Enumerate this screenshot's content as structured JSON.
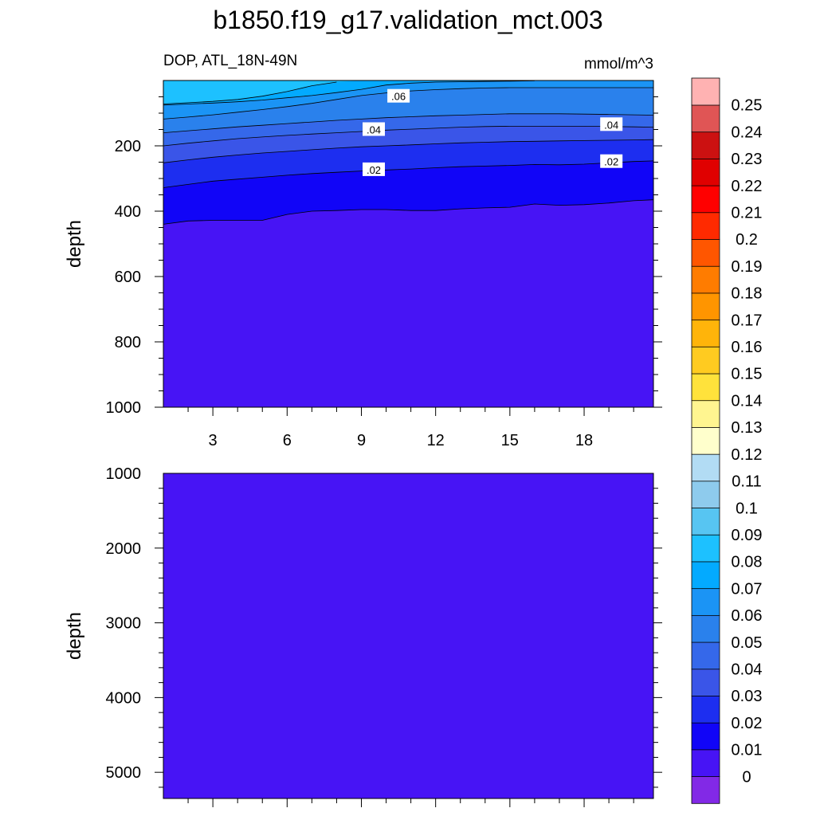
{
  "chart_data": {
    "type": "contour",
    "title": "b1850.f19_g17.validation_mct.003",
    "colorbar": {
      "tick_labels": [
        "0",
        "0.01",
        "0.02",
        "0.03",
        "0.04",
        "0.05",
        "0.06",
        "0.07",
        "0.08",
        "0.09",
        "0.1",
        "0.11",
        "0.12",
        "0.13",
        "0.14",
        "0.15",
        "0.16",
        "0.17",
        "0.18",
        "0.19",
        "0.2",
        "0.21",
        "0.22",
        "0.23",
        "0.24",
        "0.25"
      ],
      "colors": [
        "#8229e6",
        "#4714f5",
        "#1105f7",
        "#1d2ef0",
        "#3a55e8",
        "#3568ea",
        "#2a81ec",
        "#1b94f5",
        "#03aaff",
        "#1dc1ff",
        "#57c5f2",
        "#8ecbed",
        "#b2dcf4",
        "#ffffcc",
        "#fff590",
        "#ffe23b",
        "#ffcb20",
        "#ffb40a",
        "#ff9500",
        "#ff7c00",
        "#ff5600",
        "#ff2a00",
        "#ff0000",
        "#e00000",
        "#cc1111",
        "#e05555",
        "#ffb2b2"
      ]
    },
    "panels": [
      {
        "name": "upper",
        "subtitle_left": "DOP, ATL_18N-49N",
        "subtitle_right": "mmol/m^3",
        "ylabel": "depth",
        "ylim": [
          0,
          1000
        ],
        "y_ticks": [
          "200",
          "400",
          "600",
          "800",
          "1000"
        ],
        "xlim": [
          1,
          20.8
        ],
        "x_ticks": [
          "3",
          "6",
          "9",
          "12",
          "15",
          "18"
        ],
        "x": [
          1,
          2,
          3,
          4,
          5,
          6,
          7,
          8,
          9,
          10,
          11,
          12,
          13,
          14,
          15,
          16,
          17,
          18,
          19,
          20,
          20.8
        ],
        "fill_background": "#4714f5",
        "bands": [
          {
            "level": "0.01-0.02",
            "color": "#1105f7",
            "bottom": [
              440,
              430,
              428,
              428,
              428,
              410,
              400,
              398,
              395,
              395,
              398,
              398,
              393,
              390,
              388,
              378,
              382,
              380,
              375,
              368,
              365
            ]
          },
          {
            "level": "0.02-0.03",
            "color": "#1d2ef0",
            "bottom": [
              328,
              318,
              308,
              302,
              296,
              290,
              285,
              281,
              277,
              274,
              271,
              267,
              264,
              262,
              260,
              257,
              258,
              256,
              252,
              248,
              246
            ]
          },
          {
            "level": "0.03-0.04",
            "color": "#3a55e8",
            "bottom": [
              252,
              243,
              235,
              228,
              222,
              217,
              212,
              207,
              203,
              200,
              197,
              194,
              191,
              189,
              187,
              186,
              185,
              184,
              183,
              182,
              181
            ]
          },
          {
            "level": "0.04-0.05",
            "color": "#3568ea",
            "bottom": [
              200,
              192,
              185,
              178,
              173,
              168,
              164,
              160,
              156,
              152,
              149,
              146,
              143,
              141,
              140,
              140,
              140,
              140,
              141,
              142,
              143
            ]
          },
          {
            "level": "0.05-0.06",
            "color": "#2a81ec",
            "bottom": [
              160,
              154,
              148,
              142,
              137,
              132,
              127,
              122,
              118,
              114,
              111,
              108,
              106,
              104,
              102,
              102,
              102,
              103,
              104,
              105,
              106
            ]
          },
          {
            "level": "0.06-0.07",
            "color": "#1b94f5",
            "bottom": [
              118,
              112,
              105,
              97,
              89,
              80,
              70,
              58,
              46,
              38,
              32,
              28,
              25,
              23,
              22,
              22,
              22,
              22,
              22,
              22,
              22
            ]
          },
          {
            "level": "0.07-0.08",
            "color": "#03aaff",
            "bottom": [
              75,
              72,
              69,
              65,
              60,
              53,
              46,
              37,
              27,
              14,
              8,
              5,
              4,
              3,
              2,
              1,
              0,
              0,
              0,
              0,
              0
            ]
          },
          {
            "level": "0.08-0.09",
            "color": "#1dc1ff",
            "bottom": [
              72,
              68,
              64,
              58,
              48,
              34,
              16,
              5,
              0,
              0,
              0,
              0,
              0,
              0,
              0,
              0,
              0,
              0,
              0,
              0,
              0
            ]
          }
        ],
        "contour_labels": [
          {
            "text": ".06",
            "x": 10.5,
            "y": 48
          },
          {
            "text": ".04",
            "x": 9.5,
            "y": 150
          },
          {
            "text": ".04",
            "x": 19.1,
            "y": 135
          },
          {
            "text": ".02",
            "x": 9.5,
            "y": 273
          },
          {
            "text": ".02",
            "x": 19.1,
            "y": 248
          }
        ]
      },
      {
        "name": "lower",
        "ylabel": "depth",
        "ylim": [
          1000,
          5350
        ],
        "y_ticks": [
          "1000",
          "2000",
          "3000",
          "4000",
          "5000"
        ],
        "xlim": [
          1,
          20.8
        ],
        "fill_background": "#4714f5"
      }
    ]
  }
}
